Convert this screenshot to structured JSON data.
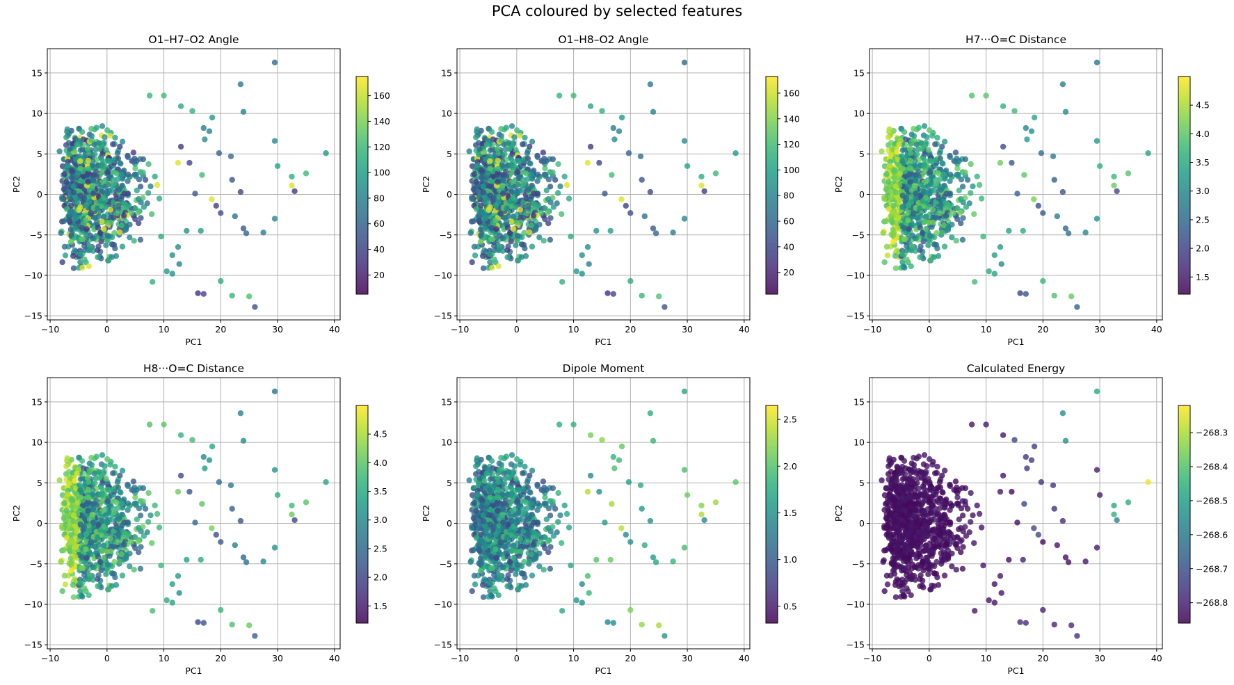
{
  "figure": {
    "suptitle": "PCA coloured by selected features",
    "colormap": "viridis",
    "viridis_stops": [
      "#440154",
      "#482878",
      "#3e4989",
      "#31688e",
      "#26828e",
      "#1f9e89",
      "#35b779",
      "#6ece58",
      "#b5de2b",
      "#fde725"
    ],
    "point_alpha": 0.8,
    "grid_color": "#b0b0b0"
  },
  "chart_data": [
    {
      "type": "scatter",
      "title": "O1–H7–O2 Angle",
      "xlabel": "PC1",
      "ylabel": "PC2",
      "xlim": [
        -10.5,
        41
      ],
      "ylim": [
        -15.5,
        18
      ],
      "xticks": [
        -10,
        0,
        10,
        20,
        30,
        40
      ],
      "yticks": [
        -15,
        -10,
        -5,
        0,
        5,
        10,
        15
      ],
      "grid": true,
      "colorbar": {
        "min": 5,
        "max": 175,
        "ticks": [
          20,
          40,
          60,
          80,
          100,
          120,
          140,
          160
        ],
        "tick_labels": [
          "20",
          "40",
          "60",
          "80",
          "100",
          "120",
          "140",
          "160"
        ]
      },
      "color_mode": "angle"
    },
    {
      "type": "scatter",
      "title": "O1–H8–O2 Angle",
      "xlabel": "PC1",
      "ylabel": "PC2",
      "xlim": [
        -10.5,
        41
      ],
      "ylim": [
        -15.5,
        18
      ],
      "xticks": [
        -10,
        0,
        10,
        20,
        30,
        40
      ],
      "yticks": [
        -15,
        -10,
        -5,
        0,
        5,
        10,
        15
      ],
      "grid": true,
      "colorbar": {
        "min": 3,
        "max": 173,
        "ticks": [
          20,
          40,
          60,
          80,
          100,
          120,
          140,
          160
        ],
        "tick_labels": [
          "20",
          "40",
          "60",
          "80",
          "100",
          "120",
          "140",
          "160"
        ]
      },
      "color_mode": "angle2"
    },
    {
      "type": "scatter",
      "title": "H7···O=C Distance",
      "xlabel": "PC1",
      "ylabel": "PC2",
      "xlim": [
        -10.5,
        41
      ],
      "ylim": [
        -15.5,
        18
      ],
      "xticks": [
        -10,
        0,
        10,
        20,
        30,
        40
      ],
      "yticks": [
        -15,
        -10,
        -5,
        0,
        5,
        10,
        15
      ],
      "grid": true,
      "colorbar": {
        "min": 1.2,
        "max": 5.0,
        "ticks": [
          1.5,
          2.0,
          2.5,
          3.0,
          3.5,
          4.0,
          4.5
        ],
        "tick_labels": [
          "1.5",
          "2.0",
          "2.5",
          "3.0",
          "3.5",
          "4.0",
          "4.5"
        ]
      },
      "color_mode": "dist"
    },
    {
      "type": "scatter",
      "title": "H8···O=C Distance",
      "xlabel": "PC1",
      "ylabel": "PC2",
      "xlim": [
        -10.5,
        41
      ],
      "ylim": [
        -15.5,
        18
      ],
      "xticks": [
        -10,
        0,
        10,
        20,
        30,
        40
      ],
      "yticks": [
        -15,
        -10,
        -5,
        0,
        5,
        10,
        15
      ],
      "grid": true,
      "colorbar": {
        "min": 1.2,
        "max": 5.0,
        "ticks": [
          1.5,
          2.0,
          2.5,
          3.0,
          3.5,
          4.0,
          4.5
        ],
        "tick_labels": [
          "1.5",
          "2.0",
          "2.5",
          "3.0",
          "3.5",
          "4.0",
          "4.5"
        ]
      },
      "color_mode": "dist2"
    },
    {
      "type": "scatter",
      "title": "Dipole Moment",
      "xlabel": "PC1",
      "ylabel": "PC2",
      "xlim": [
        -10.5,
        41
      ],
      "ylim": [
        -15.5,
        18
      ],
      "xticks": [
        -10,
        0,
        10,
        20,
        30,
        40
      ],
      "yticks": [
        -15,
        -10,
        -5,
        0,
        5,
        10,
        15
      ],
      "grid": true,
      "colorbar": {
        "min": 0.32,
        "max": 2.65,
        "ticks": [
          0.5,
          1.0,
          1.5,
          2.0,
          2.5
        ],
        "tick_labels": [
          "0.5",
          "1.0",
          "1.5",
          "2.0",
          "2.5"
        ]
      },
      "color_mode": "dipole"
    },
    {
      "type": "scatter",
      "title": "Calculated Energy",
      "xlabel": "PC1",
      "ylabel": "PC2",
      "xlim": [
        -10.5,
        41
      ],
      "ylim": [
        -15.5,
        18
      ],
      "xticks": [
        -10,
        0,
        10,
        20,
        30,
        40
      ],
      "yticks": [
        -15,
        -10,
        -5,
        0,
        5,
        10,
        15
      ],
      "grid": true,
      "colorbar": {
        "min": -268.86,
        "max": -268.22,
        "ticks": [
          -268.8,
          -268.7,
          -268.6,
          -268.5,
          -268.4,
          -268.3
        ],
        "tick_labels": [
          "−268.8",
          "−268.7",
          "−268.6",
          "−268.5",
          "−268.4",
          "−268.3"
        ]
      },
      "color_mode": "energy"
    }
  ],
  "outlier_points": [
    [
      29.5,
      16.3
    ],
    [
      23.5,
      13.6
    ],
    [
      24,
      10.2
    ],
    [
      29.5,
      6.6
    ],
    [
      38.5,
      5.1
    ],
    [
      30,
      3.5
    ],
    [
      32.5,
      2.2
    ],
    [
      35,
      2.6
    ],
    [
      32.5,
      1.1
    ],
    [
      33,
      0.4
    ],
    [
      23.5,
      0.3
    ],
    [
      22,
      1.8
    ],
    [
      19.7,
      5.1
    ],
    [
      21.8,
      4.7
    ],
    [
      17,
      8.2
    ],
    [
      18,
      7.8
    ],
    [
      17.2,
      6.8
    ],
    [
      18.5,
      9.5
    ],
    [
      13,
      10.9
    ],
    [
      15,
      10.3
    ],
    [
      16.7,
      2.4
    ],
    [
      18.4,
      -0.6
    ],
    [
      19.2,
      -1.4
    ],
    [
      20,
      -2.3
    ],
    [
      24,
      -4.2
    ],
    [
      24.5,
      -4.8
    ],
    [
      22.5,
      -2.7
    ],
    [
      27.5,
      -4.7
    ],
    [
      29.5,
      -3
    ],
    [
      14,
      -4.5
    ],
    [
      16.5,
      -4.5
    ],
    [
      20,
      -10.7
    ],
    [
      22,
      -12.5
    ],
    [
      25,
      -12.6
    ],
    [
      16,
      -12.2
    ],
    [
      17,
      -12.3
    ],
    [
      26,
      -13.9
    ],
    [
      11.5,
      -7.5
    ],
    [
      11.5,
      -9.8
    ],
    [
      10.5,
      -9.5
    ],
    [
      12.7,
      -8.6
    ],
    [
      12.5,
      -6.5
    ],
    [
      9.5,
      -5.2
    ],
    [
      8,
      -10.8
    ],
    [
      7.5,
      12.2
    ],
    [
      10,
      12.2
    ],
    [
      12.5,
      3.9
    ],
    [
      13,
      5.9
    ],
    [
      14.5,
      3.9
    ],
    [
      15.5,
      0.1
    ]
  ]
}
